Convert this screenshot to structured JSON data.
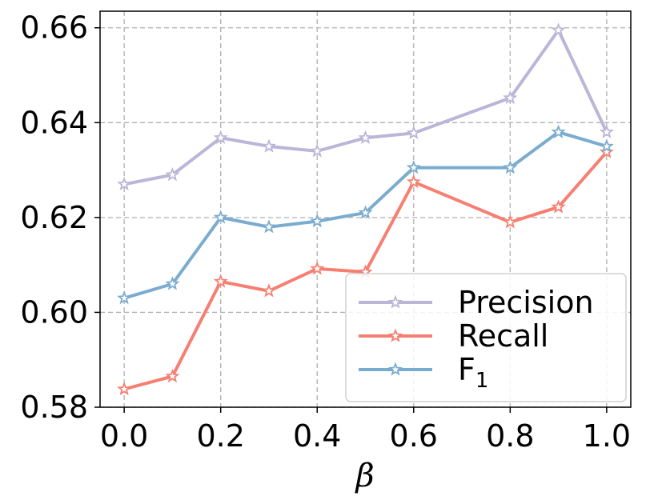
{
  "chart_data": {
    "type": "line",
    "xlabel": "β",
    "ylabel": "",
    "x": [
      0.0,
      0.1,
      0.2,
      0.3,
      0.4,
      0.5,
      0.6,
      0.8,
      0.9,
      1.0
    ],
    "xlim": [
      -0.05,
      1.05
    ],
    "ylim": [
      0.58,
      0.6635
    ],
    "xticks": [
      0.0,
      0.2,
      0.4,
      0.6,
      0.8,
      1.0
    ],
    "xtick_labels": [
      "0.0",
      "0.2",
      "0.4",
      "0.6",
      "0.8",
      "1.0"
    ],
    "yticks": [
      0.58,
      0.6,
      0.62,
      0.64,
      0.66
    ],
    "ytick_labels": [
      "0.58",
      "0.60",
      "0.62",
      "0.64",
      "0.66"
    ],
    "grid": true,
    "legend_position": "lower-right",
    "marker": "star",
    "series": [
      {
        "name": "Precision",
        "color": "#bcb5d8",
        "values": [
          0.627,
          0.629,
          0.6368,
          0.635,
          0.634,
          0.6368,
          0.6378,
          0.6452,
          0.6595,
          0.638
        ]
      },
      {
        "name": "Recall",
        "color": "#f77f72",
        "values": [
          0.5838,
          0.5865,
          0.6065,
          0.6045,
          0.6092,
          0.6085,
          0.6275,
          0.619,
          0.6222,
          0.6338
        ]
      },
      {
        "name": "F",
        "name_subscript": "1",
        "color": "#7aaccf",
        "values": [
          0.603,
          0.606,
          0.62,
          0.618,
          0.6192,
          0.621,
          0.6305,
          0.6305,
          0.638,
          0.635
        ]
      }
    ]
  }
}
